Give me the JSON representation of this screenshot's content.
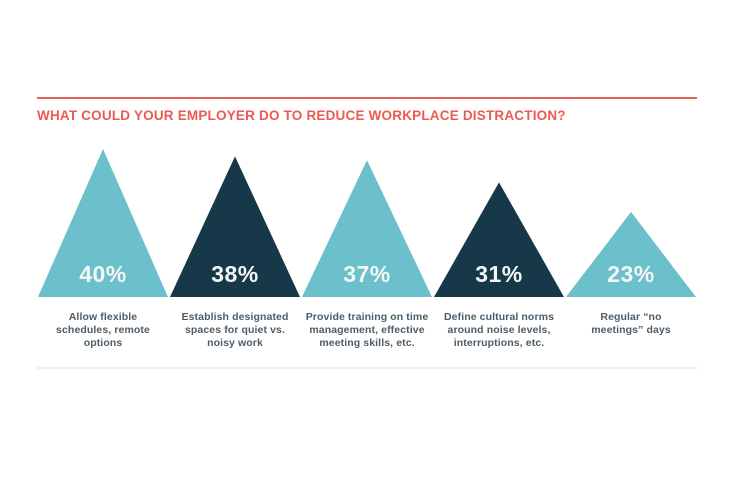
{
  "page": {
    "background": "#ffffff"
  },
  "header": {
    "rule_color": "#e2635b",
    "title": "WHAT COULD YOUR EMPLOYER DO TO REDUCE WORKPLACE DISTRACTION?",
    "title_color": "#ec5a50"
  },
  "chart_data": {
    "type": "bar",
    "variant": "triangle-pictogram",
    "title": "WHAT COULD YOUR EMPLOYER DO TO REDUCE WORKPLACE DISTRACTION?",
    "unit": "%",
    "ylim": [
      0,
      40
    ],
    "legend": "none",
    "grid": "off",
    "categories": [
      "Allow flexible schedules, remote options",
      "Establish designated spaces for quiet vs. noisy work",
      "Provide training on time management, effective meeting skills, etc.",
      "Define cultural norms around noise levels, interruptions, etc.",
      "Regular “no meetings” days"
    ],
    "category_lines": [
      [
        "Allow flexible",
        "schedules, remote",
        "options"
      ],
      [
        "Establish designated",
        "spaces for quiet vs.",
        "noisy work"
      ],
      [
        "Provide training on time",
        "management, effective",
        "meeting skills, etc."
      ],
      [
        "Define cultural norms",
        "around noise levels,",
        "interruptions, etc."
      ],
      [
        "Regular “no",
        "meetings” days"
      ]
    ],
    "values": [
      40,
      38,
      37,
      31,
      23
    ],
    "value_labels": [
      "40%",
      "38%",
      "37%",
      "31%",
      "23%"
    ],
    "colors": [
      "#6cc0cc",
      "#163849",
      "#6cc0cc",
      "#163849",
      "#6cc0cc"
    ],
    "value_label_color": "#f5f7f7",
    "category_label_color": "#4d5d68"
  }
}
